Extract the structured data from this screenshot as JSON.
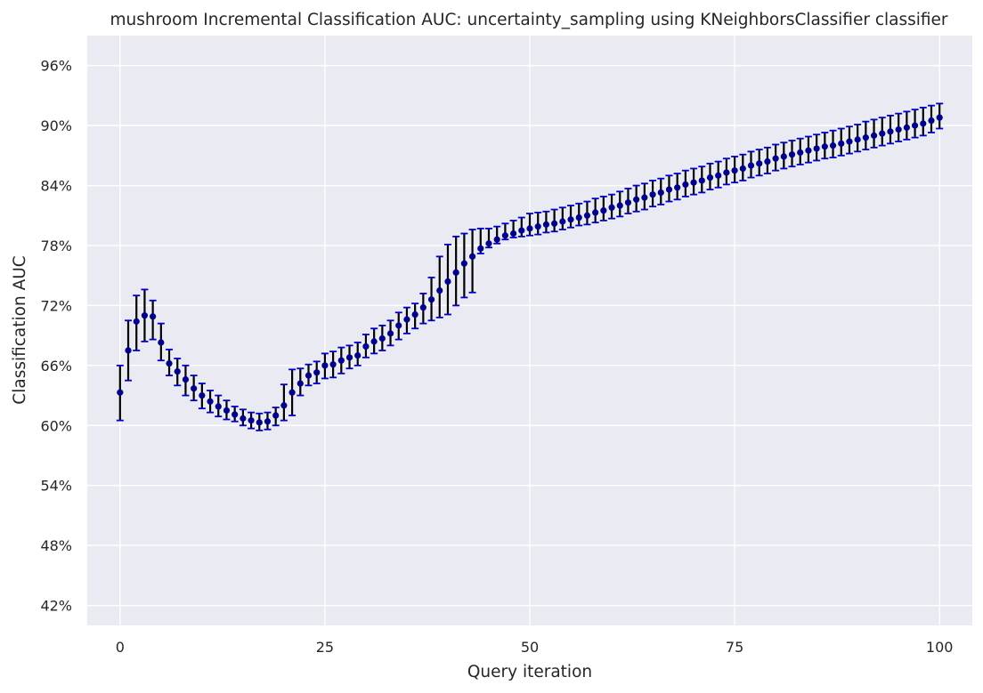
{
  "chart_data": {
    "type": "scatter",
    "title": "mushroom Incremental Classification AUC: uncertainty_sampling using KNeighborsClassifier classifier",
    "xlabel": "Query iteration",
    "ylabel": "Classification AUC",
    "xlim": [
      -4,
      104
    ],
    "ylim": [
      0.4,
      0.99
    ],
    "xticks": [
      0,
      25,
      50,
      75,
      100
    ],
    "xtick_labels": [
      "0",
      "25",
      "50",
      "75",
      "100"
    ],
    "yticks": [
      0.42,
      0.48,
      0.54,
      0.6,
      0.66,
      0.72,
      0.78,
      0.84,
      0.9,
      0.96
    ],
    "ytick_labels": [
      "42%",
      "48%",
      "54%",
      "60%",
      "66%",
      "72%",
      "78%",
      "84%",
      "90%",
      "96%"
    ],
    "grid": true,
    "colors": {
      "background": "#eaeaf2",
      "grid": "#ffffff",
      "marker": "#00008b",
      "error_bar": "#000000",
      "cap": "#0000cd"
    },
    "series": [
      {
        "x": [
          0,
          1,
          2,
          3,
          4,
          5,
          6,
          7,
          8,
          9,
          10,
          11,
          12,
          13,
          14,
          15,
          16,
          17,
          18,
          19,
          20,
          21,
          22,
          23,
          24,
          25,
          26,
          27,
          28,
          29,
          30,
          31,
          32,
          33,
          34,
          35,
          36,
          37,
          38,
          39,
          40,
          41,
          42,
          43,
          44,
          45,
          46,
          47,
          48,
          49,
          50,
          51,
          52,
          53,
          54,
          55,
          56,
          57,
          58,
          59,
          60,
          61,
          62,
          63,
          64,
          65,
          66,
          67,
          68,
          69,
          70,
          71,
          72,
          73,
          74,
          75,
          76,
          77,
          78,
          79,
          80,
          81,
          82,
          83,
          84,
          85,
          86,
          87,
          88,
          89,
          90,
          91,
          92,
          93,
          94,
          95,
          96,
          97,
          98,
          99,
          100
        ],
        "y": [
          0.633,
          0.675,
          0.704,
          0.71,
          0.709,
          0.683,
          0.662,
          0.654,
          0.646,
          0.637,
          0.63,
          0.624,
          0.619,
          0.615,
          0.611,
          0.607,
          0.605,
          0.603,
          0.604,
          0.61,
          0.62,
          0.633,
          0.642,
          0.65,
          0.653,
          0.66,
          0.661,
          0.665,
          0.668,
          0.67,
          0.679,
          0.684,
          0.687,
          0.692,
          0.7,
          0.706,
          0.711,
          0.718,
          0.726,
          0.735,
          0.744,
          0.753,
          0.762,
          0.769,
          0.777,
          0.782,
          0.786,
          0.79,
          0.792,
          0.795,
          0.797,
          0.799,
          0.801,
          0.802,
          0.804,
          0.806,
          0.808,
          0.81,
          0.813,
          0.815,
          0.818,
          0.82,
          0.823,
          0.826,
          0.828,
          0.831,
          0.833,
          0.836,
          0.838,
          0.841,
          0.843,
          0.845,
          0.848,
          0.85,
          0.853,
          0.855,
          0.857,
          0.86,
          0.862,
          0.864,
          0.867,
          0.869,
          0.871,
          0.873,
          0.875,
          0.877,
          0.879,
          0.88,
          0.882,
          0.884,
          0.886,
          0.888,
          0.89,
          0.892,
          0.894,
          0.896,
          0.898,
          0.9,
          0.902,
          0.905,
          0.908
        ],
        "y_lower": [
          0.605,
          0.645,
          0.675,
          0.684,
          0.686,
          0.665,
          0.65,
          0.64,
          0.63,
          0.625,
          0.617,
          0.613,
          0.609,
          0.606,
          0.604,
          0.6,
          0.597,
          0.595,
          0.596,
          0.6,
          0.605,
          0.61,
          0.63,
          0.64,
          0.642,
          0.647,
          0.648,
          0.652,
          0.657,
          0.66,
          0.668,
          0.672,
          0.675,
          0.68,
          0.686,
          0.692,
          0.697,
          0.702,
          0.705,
          0.708,
          0.711,
          0.72,
          0.728,
          0.733,
          0.772,
          0.778,
          0.782,
          0.786,
          0.788,
          0.789,
          0.79,
          0.791,
          0.793,
          0.794,
          0.796,
          0.798,
          0.8,
          0.801,
          0.803,
          0.805,
          0.807,
          0.809,
          0.812,
          0.814,
          0.816,
          0.819,
          0.821,
          0.824,
          0.826,
          0.829,
          0.831,
          0.833,
          0.836,
          0.838,
          0.841,
          0.843,
          0.845,
          0.848,
          0.85,
          0.852,
          0.855,
          0.857,
          0.859,
          0.861,
          0.863,
          0.865,
          0.867,
          0.868,
          0.87,
          0.872,
          0.874,
          0.876,
          0.878,
          0.88,
          0.882,
          0.884,
          0.886,
          0.888,
          0.89,
          0.893,
          0.897
        ],
        "y_upper": [
          0.66,
          0.705,
          0.73,
          0.736,
          0.725,
          0.702,
          0.676,
          0.667,
          0.66,
          0.65,
          0.642,
          0.635,
          0.63,
          0.625,
          0.619,
          0.616,
          0.613,
          0.612,
          0.613,
          0.618,
          0.641,
          0.656,
          0.657,
          0.661,
          0.664,
          0.672,
          0.674,
          0.678,
          0.68,
          0.683,
          0.691,
          0.697,
          0.7,
          0.705,
          0.713,
          0.718,
          0.722,
          0.732,
          0.748,
          0.769,
          0.781,
          0.789,
          0.792,
          0.796,
          0.797,
          0.797,
          0.799,
          0.802,
          0.805,
          0.808,
          0.812,
          0.813,
          0.814,
          0.816,
          0.818,
          0.82,
          0.822,
          0.824,
          0.827,
          0.829,
          0.831,
          0.834,
          0.837,
          0.84,
          0.842,
          0.845,
          0.847,
          0.85,
          0.852,
          0.855,
          0.857,
          0.859,
          0.862,
          0.864,
          0.867,
          0.869,
          0.871,
          0.874,
          0.876,
          0.878,
          0.881,
          0.883,
          0.885,
          0.887,
          0.889,
          0.891,
          0.893,
          0.895,
          0.897,
          0.899,
          0.901,
          0.904,
          0.906,
          0.908,
          0.91,
          0.912,
          0.914,
          0.916,
          0.918,
          0.92,
          0.922
        ]
      }
    ]
  }
}
